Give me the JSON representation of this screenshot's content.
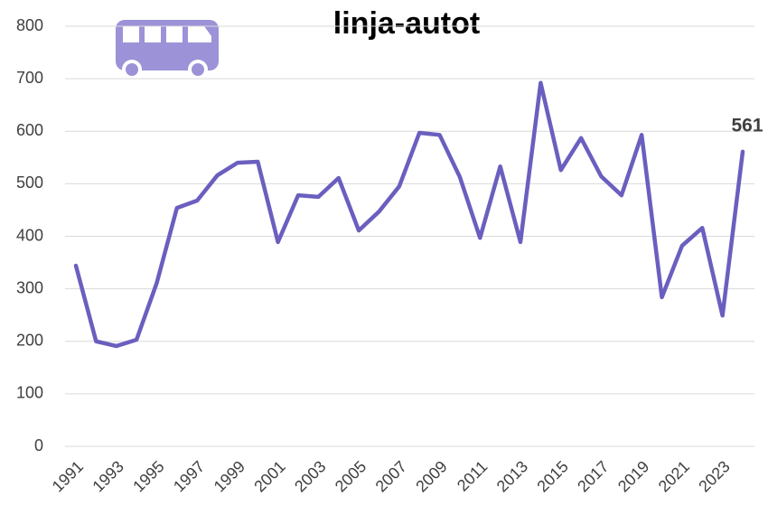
{
  "chart_data": {
    "type": "line",
    "title": "linja-autot",
    "categories": [
      "1991",
      null,
      "1993",
      null,
      "1995",
      null,
      "1997",
      null,
      "1999",
      null,
      "2001",
      null,
      "2003",
      null,
      "2005",
      null,
      "2007",
      null,
      "2009",
      null,
      "2011",
      null,
      "2013",
      null,
      "2015",
      null,
      "2017",
      null,
      "2019",
      null,
      "2021",
      null,
      "2023",
      null
    ],
    "values": [
      344,
      200,
      191,
      203,
      311,
      454,
      468,
      516,
      540,
      542,
      389,
      478,
      475,
      511,
      411,
      447,
      495,
      597,
      593,
      513,
      397,
      533,
      389,
      692,
      526,
      587,
      514,
      478,
      593,
      284,
      382,
      416,
      249,
      561
    ],
    "color": "#6a5fbf",
    "ylim": [
      0,
      800
    ],
    "yticks": [
      0,
      100,
      200,
      300,
      400,
      500,
      600,
      700,
      800
    ],
    "grid": true
  }
}
